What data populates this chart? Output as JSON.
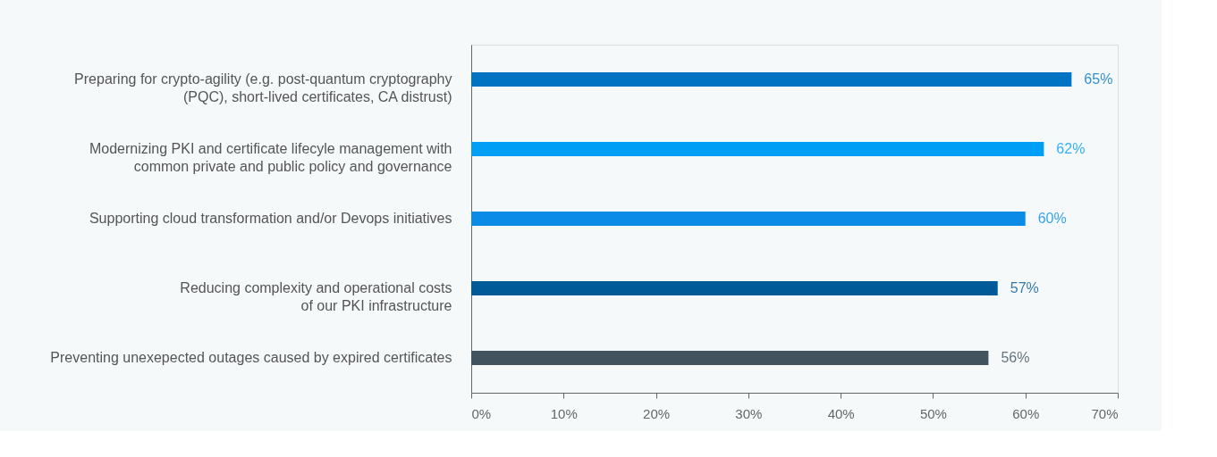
{
  "chart_data": {
    "type": "bar",
    "orientation": "horizontal",
    "categories": [
      "Preparing for crypto-agility (e.g. post-quantum cryptography\n(PQC), short-lived certificates, CA distrust)",
      "Modernizing PKI and certificate lifecyle management with\ncommon private and public policy and governance",
      "Supporting cloud transformation and/or Devops initiatives",
      "Reducing complexity and operational costs\nof our PKI infrastructure",
      "Preventing unexepected outages caused by expired certificates"
    ],
    "values": [
      65,
      62,
      60,
      57,
      56
    ],
    "colors": [
      "#0074c2",
      "#009ff5",
      "#0a8ce6",
      "#005a98",
      "#41535e"
    ],
    "value_labels": [
      "65%",
      "62%",
      "60%",
      "57%",
      "56%"
    ],
    "xlim": [
      0,
      70
    ],
    "xticks": [
      {
        "value": 0,
        "label": "0%"
      },
      {
        "value": 10,
        "label": "10%"
      },
      {
        "value": 20,
        "label": "20%"
      },
      {
        "value": 30,
        "label": "30%"
      },
      {
        "value": 40,
        "label": "40%"
      },
      {
        "value": 50,
        "label": "50%"
      },
      {
        "value": 60,
        "label": "60%"
      },
      {
        "value": 70,
        "label": "70%"
      }
    ],
    "grid": false
  }
}
